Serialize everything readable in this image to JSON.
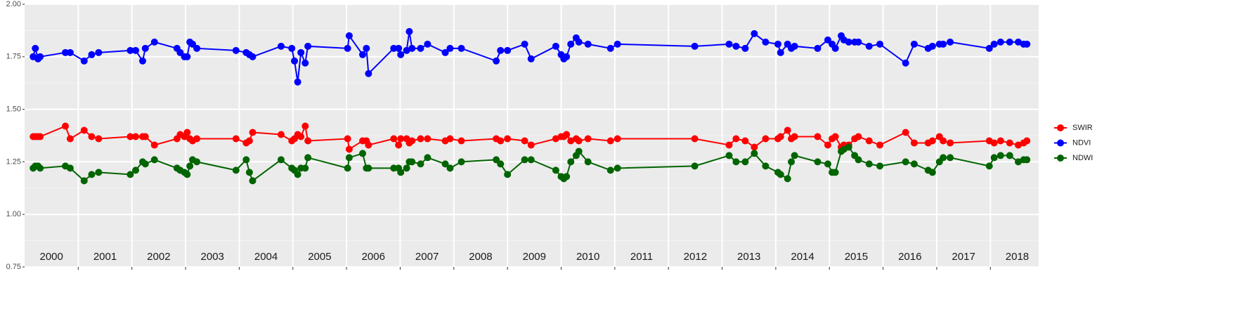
{
  "chart_data": {
    "type": "line",
    "x": [
      2000.16,
      2000.2,
      2000.25,
      2000.29,
      2000.76,
      2000.85,
      2001.11,
      2001.25,
      2001.38,
      2001.97,
      2002.07,
      2002.2,
      2002.25,
      2002.42,
      2002.84,
      2002.9,
      2002.98,
      2003.03,
      2003.08,
      2003.13,
      2003.21,
      2003.94,
      2004.13,
      2004.19,
      2004.25,
      2004.78,
      2004.98,
      2005.03,
      2005.09,
      2005.15,
      2005.23,
      2005.28,
      2006.02,
      2006.05,
      2006.3,
      2006.37,
      2006.41,
      2006.88,
      2006.97,
      2007.01,
      2007.12,
      2007.17,
      2007.22,
      2007.38,
      2007.51,
      2007.84,
      2007.93,
      2008.14,
      2008.79,
      2008.87,
      2009.0,
      2009.32,
      2009.44,
      2009.9,
      2010.0,
      2010.05,
      2010.1,
      2010.18,
      2010.28,
      2010.33,
      2010.5,
      2010.92,
      2011.05,
      2012.49,
      2013.13,
      2013.26,
      2013.43,
      2013.6,
      2013.81,
      2014.04,
      2014.09,
      2014.22,
      2014.29,
      2014.35,
      2014.78,
      2014.97,
      2015.05,
      2015.11,
      2015.22,
      2015.27,
      2015.36,
      2015.47,
      2015.54,
      2015.74,
      2015.94,
      2016.42,
      2016.58,
      2016.84,
      2016.92,
      2017.05,
      2017.12,
      2017.25,
      2017.98,
      2018.07,
      2018.19,
      2018.36,
      2018.52,
      2018.62,
      2018.68
    ],
    "series": [
      {
        "name": "SWIR",
        "color": "#ff0000",
        "values": [
          1.37,
          1.37,
          1.37,
          1.37,
          1.42,
          1.36,
          1.4,
          1.37,
          1.36,
          1.37,
          1.37,
          1.37,
          1.37,
          1.33,
          1.36,
          1.38,
          1.37,
          1.39,
          1.36,
          1.35,
          1.36,
          1.36,
          1.34,
          1.35,
          1.39,
          1.38,
          1.35,
          1.36,
          1.38,
          1.37,
          1.42,
          1.35,
          1.36,
          1.31,
          1.35,
          1.35,
          1.33,
          1.36,
          1.33,
          1.36,
          1.36,
          1.34,
          1.35,
          1.36,
          1.36,
          1.35,
          1.36,
          1.35,
          1.36,
          1.35,
          1.36,
          1.35,
          1.33,
          1.36,
          1.37,
          1.37,
          1.38,
          1.35,
          1.36,
          1.35,
          1.36,
          1.35,
          1.36,
          1.36,
          1.33,
          1.36,
          1.35,
          1.32,
          1.36,
          1.36,
          1.37,
          1.4,
          1.36,
          1.37,
          1.37,
          1.33,
          1.36,
          1.37,
          1.32,
          1.33,
          1.33,
          1.36,
          1.37,
          1.35,
          1.33,
          1.39,
          1.34,
          1.34,
          1.35,
          1.37,
          1.35,
          1.34,
          1.35,
          1.34,
          1.35,
          1.34,
          1.33,
          1.34,
          1.35
        ]
      },
      {
        "name": "NDVI",
        "color": "#0000ff",
        "values": [
          1.75,
          1.79,
          1.74,
          1.75,
          1.77,
          1.77,
          1.73,
          1.76,
          1.77,
          1.78,
          1.78,
          1.73,
          1.79,
          1.82,
          1.79,
          1.77,
          1.75,
          1.75,
          1.82,
          1.81,
          1.79,
          1.78,
          1.77,
          1.76,
          1.75,
          1.8,
          1.79,
          1.73,
          1.63,
          1.77,
          1.72,
          1.8,
          1.79,
          1.85,
          1.76,
          1.79,
          1.67,
          1.79,
          1.79,
          1.76,
          1.78,
          1.87,
          1.79,
          1.79,
          1.81,
          1.77,
          1.79,
          1.79,
          1.73,
          1.78,
          1.78,
          1.81,
          1.74,
          1.8,
          1.76,
          1.74,
          1.75,
          1.81,
          1.84,
          1.82,
          1.81,
          1.79,
          1.81,
          1.8,
          1.81,
          1.8,
          1.79,
          1.86,
          1.82,
          1.81,
          1.77,
          1.81,
          1.79,
          1.8,
          1.79,
          1.83,
          1.81,
          1.79,
          1.85,
          1.83,
          1.82,
          1.82,
          1.82,
          1.8,
          1.81,
          1.72,
          1.81,
          1.79,
          1.8,
          1.81,
          1.81,
          1.82,
          1.79,
          1.81,
          1.82,
          1.82,
          1.82,
          1.81,
          1.81
        ]
      },
      {
        "name": "NDWI",
        "color": "#006400",
        "values": [
          1.22,
          1.23,
          1.23,
          1.22,
          1.23,
          1.22,
          1.16,
          1.19,
          1.2,
          1.19,
          1.21,
          1.25,
          1.24,
          1.26,
          1.22,
          1.21,
          1.2,
          1.19,
          1.23,
          1.26,
          1.25,
          1.21,
          1.26,
          1.2,
          1.16,
          1.26,
          1.22,
          1.21,
          1.19,
          1.22,
          1.22,
          1.27,
          1.22,
          1.27,
          1.29,
          1.22,
          1.22,
          1.22,
          1.22,
          1.2,
          1.22,
          1.25,
          1.25,
          1.24,
          1.27,
          1.24,
          1.22,
          1.25,
          1.26,
          1.24,
          1.19,
          1.26,
          1.26,
          1.21,
          1.18,
          1.17,
          1.18,
          1.25,
          1.28,
          1.3,
          1.25,
          1.21,
          1.22,
          1.23,
          1.28,
          1.25,
          1.25,
          1.29,
          1.23,
          1.2,
          1.19,
          1.17,
          1.25,
          1.28,
          1.25,
          1.24,
          1.2,
          1.2,
          1.3,
          1.31,
          1.32,
          1.28,
          1.26,
          1.24,
          1.23,
          1.25,
          1.24,
          1.21,
          1.2,
          1.25,
          1.27,
          1.27,
          1.23,
          1.27,
          1.28,
          1.28,
          1.25,
          1.26,
          1.26
        ]
      }
    ],
    "xlim": [
      2000,
      2018.9
    ],
    "xgrid": [
      2001,
      2002,
      2003,
      2004,
      2005,
      2006,
      2007,
      2008,
      2009,
      2010,
      2011,
      2012,
      2013,
      2014,
      2015,
      2016,
      2017,
      2018
    ],
    "xticks": [
      {
        "value": 2000.5,
        "label": "2000"
      },
      {
        "value": 2001.5,
        "label": "2001"
      },
      {
        "value": 2002.5,
        "label": "2002"
      },
      {
        "value": 2003.5,
        "label": "2003"
      },
      {
        "value": 2004.5,
        "label": "2004"
      },
      {
        "value": 2005.5,
        "label": "2005"
      },
      {
        "value": 2006.5,
        "label": "2006"
      },
      {
        "value": 2007.5,
        "label": "2007"
      },
      {
        "value": 2008.5,
        "label": "2008"
      },
      {
        "value": 2009.5,
        "label": "2009"
      },
      {
        "value": 2010.5,
        "label": "2010"
      },
      {
        "value": 2011.5,
        "label": "2011"
      },
      {
        "value": 2012.5,
        "label": "2012"
      },
      {
        "value": 2013.5,
        "label": "2013"
      },
      {
        "value": 2014.5,
        "label": "2014"
      },
      {
        "value": 2015.5,
        "label": "2015"
      },
      {
        "value": 2016.5,
        "label": "2016"
      },
      {
        "value": 2017.5,
        "label": "2017"
      },
      {
        "value": 2018.5,
        "label": "2018"
      }
    ],
    "ylim": [
      0.75,
      2.0
    ],
    "yticks": [
      {
        "value": 0.75,
        "label": "0.75"
      },
      {
        "value": 1.0,
        "label": "1.00"
      },
      {
        "value": 1.25,
        "label": "1.25"
      },
      {
        "value": 1.5,
        "label": "1.50"
      },
      {
        "value": 1.75,
        "label": "1.75"
      },
      {
        "value": 2.0,
        "label": "2.00"
      }
    ],
    "grid": true,
    "legend": "right"
  }
}
